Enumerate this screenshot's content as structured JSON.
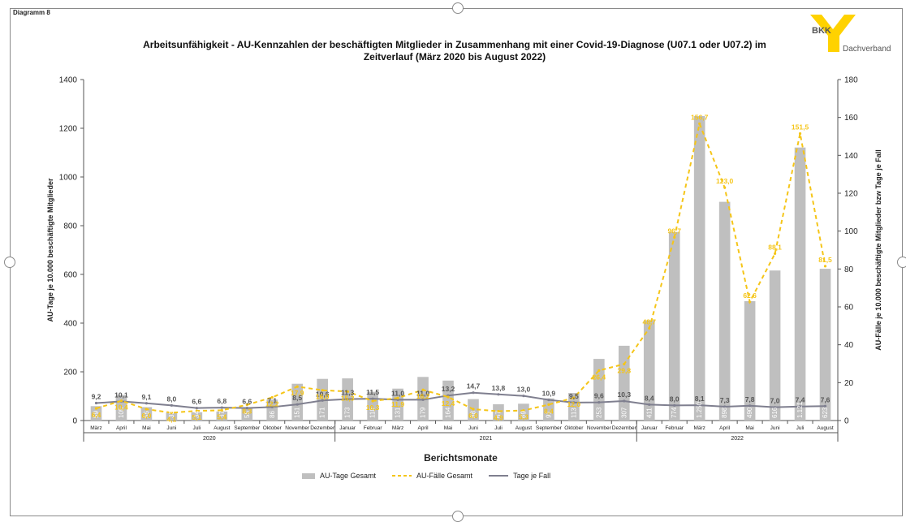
{
  "page": {
    "diagram_label": "Diagramm 8",
    "logo_text": "BKK",
    "logo_sub": "Dachverband"
  },
  "colors": {
    "bar": "#bfbfbf",
    "faelle_line": "#f5c518",
    "tage_line": "#7f7f8f",
    "logo_yellow": "#ffd200"
  },
  "chart_data": {
    "type": "bar",
    "title_line1": "Arbeitsunfähigkeit - AU-Kennzahlen der beschäftigten Mitglieder in Zusammenhang mit einer Covid-19-Diagnose (U07.1 oder U07.2) im",
    "title_line2": "Zeitverlauf (März 2020 bis August 2022)",
    "xlabel": "Berichtsmonate",
    "ylabel_left": "AU-Tage je 10.000 beschäftigte Mitglieder",
    "ylabel_right": "AU-Fälle je 10.000 beschäftigte Mitglieder bzw Tage je Fall",
    "ylim_left": [
      0,
      1400
    ],
    "yticks_left": [
      0,
      200,
      400,
      600,
      800,
      1000,
      1200,
      1400
    ],
    "ylim_right": [
      0,
      180
    ],
    "yticks_right": [
      0,
      20,
      40,
      60,
      80,
      100,
      120,
      140,
      160,
      180
    ],
    "categories": [
      "März",
      "April",
      "Mai",
      "Juni",
      "Juli",
      "August",
      "September",
      "Oktober",
      "November",
      "Dezember",
      "Januar",
      "Februar",
      "März",
      "April",
      "Mai",
      "Juni",
      "Juli",
      "August",
      "September",
      "Oktober",
      "November",
      "Dezember",
      "Januar",
      "Februar",
      "März",
      "April",
      "Mai",
      "Juni",
      "Juli",
      "August"
    ],
    "years": [
      {
        "label": "2020",
        "start": 0,
        "end": 9
      },
      {
        "label": "2021",
        "start": 10,
        "end": 21
      },
      {
        "label": "2022",
        "start": 22,
        "end": 29
      }
    ],
    "grid": false,
    "legend_position": "bottom",
    "series": [
      {
        "name": "AU-Tage Gesamt",
        "type": "bar",
        "axis": "left",
        "values": [
          59,
          105,
          55,
          33,
          34,
          37,
          55,
          86,
          151,
          171,
          173,
          118,
          131,
          179,
          164,
          88,
          67,
          69,
          91,
          113,
          253,
          307,
          411,
          774,
          1250,
          898,
          490,
          616,
          1121,
          623
        ],
        "labels": [
          "59",
          "105",
          "55",
          "33",
          "34",
          "37",
          "55",
          "86",
          "151",
          "171",
          "173",
          "118",
          "131",
          "179",
          "164",
          "88",
          "67",
          "69",
          "91",
          "113",
          "253",
          "307",
          "411",
          "774",
          "1.250",
          "898",
          "490",
          "616",
          "1.121",
          "623"
        ]
      },
      {
        "name": "AU-Fälle Gesamt",
        "type": "line",
        "style": "dashed",
        "axis": "right",
        "values": [
          6.4,
          10.4,
          6.0,
          4.1,
          5.1,
          5.4,
          8.3,
          12.2,
          17.9,
          16.0,
          15.3,
          10.3,
          11.9,
          16.2,
          12.4,
          6.0,
          4.9,
          5.3,
          8.4,
          12.0,
          26.4,
          29.8,
          48.7,
          96.7,
          156.7,
          123.0,
          62.6,
          88.1,
          151.5,
          81.5
        ],
        "labels": [
          "6,4",
          "10,4",
          "6,0",
          "4,1",
          "5,1",
          "5,4",
          "8,3",
          "12,2",
          "17,9",
          "16,0",
          "15,3",
          "10,3",
          "11,9",
          "16,2",
          "12,4",
          "6,0",
          "4,9",
          "5,3",
          "8,4",
          "12,0",
          "26,4",
          "29,8",
          "48,7",
          "96,7",
          "156,7",
          "123,0",
          "62,6",
          "88,1",
          "151,5",
          "81,5"
        ]
      },
      {
        "name": "Tage je Fall",
        "type": "line",
        "style": "solid",
        "axis": "right",
        "values": [
          9.2,
          10.1,
          9.1,
          8.0,
          6.6,
          6.8,
          6.6,
          7.1,
          8.5,
          10.6,
          11.3,
          11.5,
          11.0,
          11.0,
          13.2,
          14.7,
          13.8,
          13.0,
          10.9,
          9.5,
          9.6,
          10.3,
          8.4,
          8.0,
          8.1,
          7.3,
          7.8,
          7.0,
          7.4,
          7.6
        ],
        "labels": [
          "9,2",
          "10,1",
          "9,1",
          "8,0",
          "6,6",
          "6,8",
          "6,6",
          "7,1",
          "8,5",
          "10,6",
          "11,3",
          "11,5",
          "11,0",
          "11,0",
          "13,2",
          "14,7",
          "13,8",
          "13,0",
          "10,9",
          "9,5",
          "9,6",
          "10,3",
          "8,4",
          "8,0",
          "8,1",
          "7,3",
          "7,8",
          "7,0",
          "7,4",
          "7,6"
        ]
      }
    ]
  }
}
